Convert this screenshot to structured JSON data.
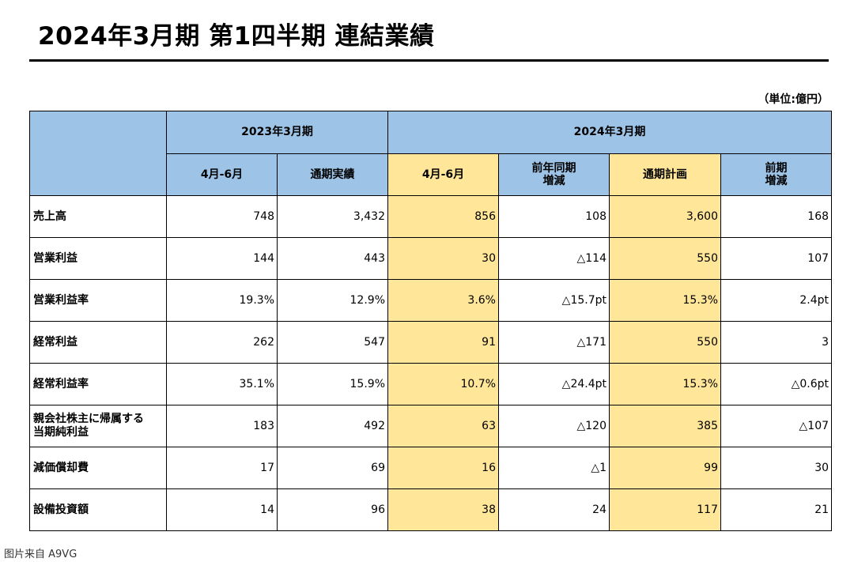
{
  "title": "2024年3月期 第1四半期 連結業績",
  "unit": "（単位:億円）",
  "header": {
    "group_prev": "2023年3月期",
    "group_curr": "2024年3月期",
    "columns": [
      "4月-6月",
      "通期実績",
      "4月-6月",
      "前年同期\n増減",
      "通期計画",
      "前期\n増減"
    ]
  },
  "rows": [
    {
      "label": "売上高",
      "values": [
        "748",
        "3,432",
        "856",
        "108",
        "3,600",
        "168"
      ]
    },
    {
      "label": "営業利益",
      "values": [
        "144",
        "443",
        "30",
        "△114",
        "550",
        "107"
      ]
    },
    {
      "label": "営業利益率",
      "values": [
        "19.3%",
        "12.9%",
        "3.6%",
        "△15.7pt",
        "15.3%",
        "2.4pt"
      ]
    },
    {
      "label": "経常利益",
      "values": [
        "262",
        "547",
        "91",
        "△171",
        "550",
        "3"
      ]
    },
    {
      "label": "経常利益率",
      "values": [
        "35.1%",
        "15.9%",
        "10.7%",
        "△24.4pt",
        "15.3%",
        "△0.6pt"
      ]
    },
    {
      "label": "親会社株主に帰属する\n当期純利益",
      "values": [
        "183",
        "492",
        "63",
        "△120",
        "385",
        "△107"
      ]
    },
    {
      "label": "減価償却費",
      "values": [
        "17",
        "69",
        "16",
        "△1",
        "99",
        "30"
      ]
    },
    {
      "label": "設備投資額",
      "values": [
        "14",
        "96",
        "38",
        "24",
        "117",
        "21"
      ]
    }
  ],
  "credit": "图片来自 A9VG",
  "colors": {
    "header_blue": "#9dc3e6",
    "highlight_yellow": "#ffe699"
  }
}
